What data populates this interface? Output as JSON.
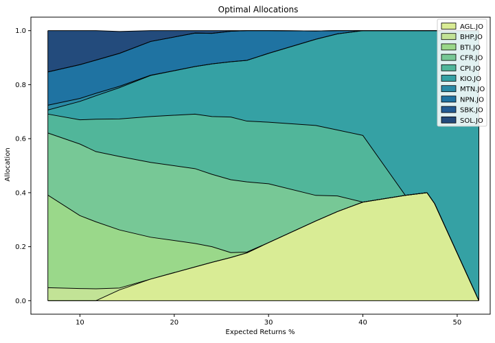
{
  "chart_data": {
    "type": "area",
    "stacked": true,
    "title": "Optimal Allocations",
    "xlabel": "Expected Returns %",
    "ylabel": "Allocation",
    "xlim": [
      4.8,
      53.5
    ],
    "ylim": [
      -0.05,
      1.05
    ],
    "xticks": [
      10,
      20,
      30,
      40,
      50
    ],
    "yticks": [
      0.0,
      0.2,
      0.4,
      0.6,
      0.8,
      1.0
    ],
    "xtick_labels": [
      "10",
      "20",
      "30",
      "40",
      "50"
    ],
    "ytick_labels": [
      "0.0",
      "0.2",
      "0.4",
      "0.6",
      "0.8",
      "1.0"
    ],
    "grid": false,
    "legend_position": "top-right",
    "x": [
      6.6,
      10.0,
      11.7,
      14.2,
      17.5,
      22.2,
      24.0,
      26.0,
      27.7,
      30.0,
      35.0,
      37.3,
      40.0,
      44.5,
      46.8,
      47.6,
      52.3
    ],
    "series": [
      {
        "name": "AGL.JO",
        "color": "#d9ec95",
        "values": [
          0.0,
          0.0,
          0.0,
          0.04,
          0.08,
          0.125,
          0.142,
          0.16,
          0.177,
          0.215,
          0.295,
          0.33,
          0.365,
          0.39,
          0.4,
          0.36,
          0.0
        ]
      },
      {
        "name": "BHP.JO",
        "color": "#c2e396",
        "values": [
          0.048,
          0.045,
          0.044,
          0.007,
          0.0,
          0.0,
          0.0,
          0.0,
          0.0,
          0.0,
          0.0,
          0.0,
          0.0,
          0.0,
          0.0,
          0.0,
          0.0
        ]
      },
      {
        "name": "BTI.JO",
        "color": "#9ad88a",
        "values": [
          0.343,
          0.27,
          0.248,
          0.215,
          0.155,
          0.087,
          0.058,
          0.018,
          0.003,
          0.0,
          0.0,
          0.0,
          0.0,
          0.0,
          0.0,
          0.0,
          0.0
        ]
      },
      {
        "name": "CFR.JO",
        "color": "#77c896",
        "values": [
          0.23,
          0.265,
          0.26,
          0.272,
          0.277,
          0.277,
          0.268,
          0.27,
          0.26,
          0.218,
          0.095,
          0.058,
          0.0,
          0.0,
          0.0,
          0.0,
          0.0
        ]
      },
      {
        "name": "CPI.JO",
        "color": "#51b69a",
        "values": [
          0.07,
          0.09,
          0.12,
          0.139,
          0.17,
          0.202,
          0.214,
          0.232,
          0.225,
          0.228,
          0.259,
          0.244,
          0.247,
          0.0,
          0.0,
          0.0,
          0.0
        ]
      },
      {
        "name": "KIO.JO",
        "color": "#35a1a4",
        "values": [
          0.015,
          0.068,
          0.087,
          0.116,
          0.152,
          0.176,
          0.195,
          0.205,
          0.225,
          0.255,
          0.319,
          0.356,
          0.388,
          0.61,
          0.6,
          0.64,
          1.0
        ]
      },
      {
        "name": "MTN.JO",
        "color": "#2a8aa6",
        "values": [
          0.018,
          0.011,
          0.009,
          0.005,
          0.001,
          0.0,
          0.0,
          0.0,
          0.0,
          0.0,
          0.0,
          0.0,
          0.0,
          0.0,
          0.0,
          0.0,
          0.0
        ]
      },
      {
        "name": "NPN.JO",
        "color": "#1f73a2",
        "values": [
          0.123,
          0.125,
          0.123,
          0.122,
          0.125,
          0.124,
          0.113,
          0.113,
          0.11,
          0.084,
          0.031,
          0.012,
          0.0,
          0.0,
          0.0,
          0.0,
          0.0
        ]
      },
      {
        "name": "SBK.JO",
        "color": "#225b93",
        "values": [
          0.0,
          0.0,
          0.0,
          0.0,
          0.0,
          0.0,
          0.0,
          0.0,
          0.0,
          0.0,
          0.0,
          0.0,
          0.0,
          0.0,
          0.0,
          0.0,
          0.0
        ]
      },
      {
        "name": "SOL.JO",
        "color": "#234b7c",
        "values": [
          0.153,
          0.126,
          0.109,
          0.081,
          0.04,
          0.009,
          0.01,
          0.002,
          0.0,
          0.0,
          0.0,
          0.0,
          0.0,
          0.0,
          0.0,
          0.0,
          0.0
        ]
      }
    ]
  }
}
